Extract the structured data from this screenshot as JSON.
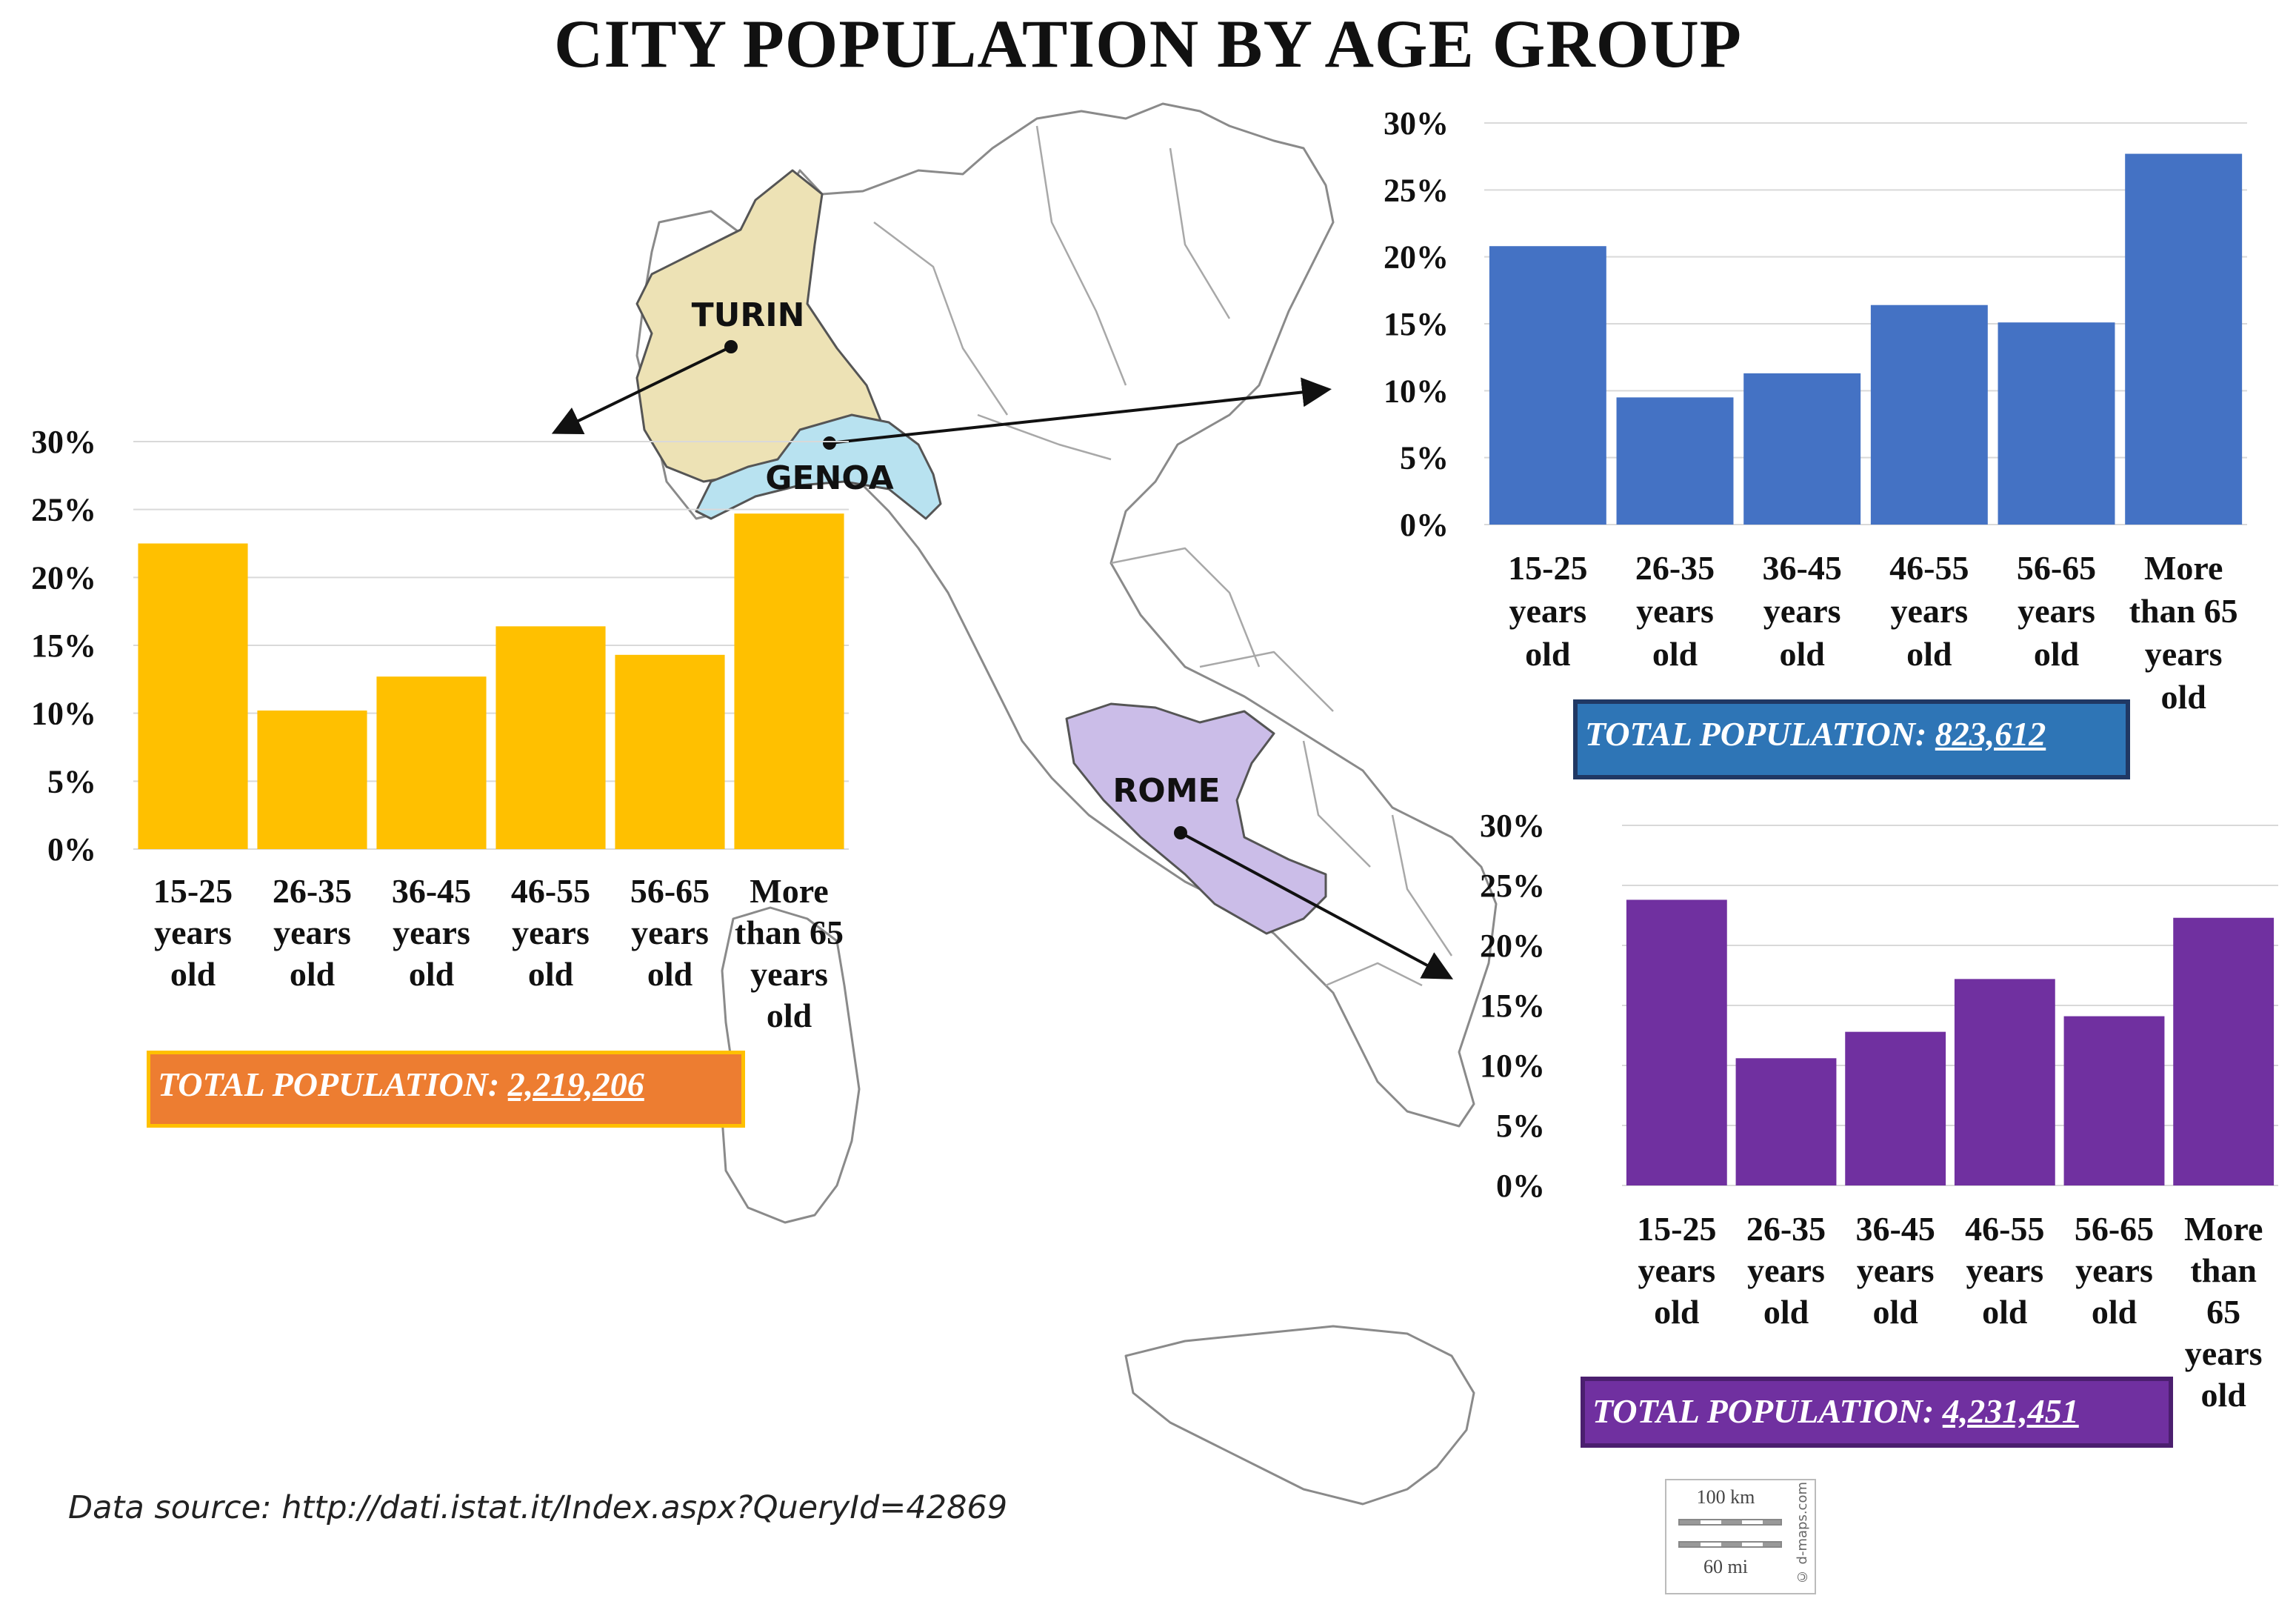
{
  "title": "CITY POPULATION BY AGE GROUP",
  "source": "Data source: http://dati.istat.it/Index.aspx?QueryId=42869",
  "scale_bar": {
    "km": "100 km",
    "mi": "60 mi",
    "credit": "© d-maps.com"
  },
  "map_labels": {
    "turin": "TURIN",
    "genoa": "GENOA",
    "rome": "ROME"
  },
  "colors": {
    "turin_bars": "#ffc000",
    "genoa_bars": "#4472c4",
    "rome_bars": "#7030a0",
    "turin_region": "#ede2b5",
    "genoa_region": "#b8e2f0",
    "rome_region": "#cbbde8"
  },
  "boxes": {
    "turin": {
      "label": "TOTAL POPULATION: ",
      "value": "2,219,206"
    },
    "genoa": {
      "label": "TOTAL POPULATION: ",
      "value": "823,612"
    },
    "rome": {
      "label": "TOTAL POPULATION: ",
      "value": "4,231,451"
    }
  },
  "chart_data": [
    {
      "type": "bar",
      "city": "Turin",
      "categories": [
        "15-25 years old",
        "26-35 years old",
        "36-45 years old",
        "46-55 years old",
        "56-65 years old",
        "More than 65 years old"
      ],
      "category_lines": [
        [
          "15-25",
          "years",
          "old"
        ],
        [
          "26-35",
          "years",
          "old"
        ],
        [
          "36-45",
          "years",
          "old"
        ],
        [
          "46-55",
          "years",
          "old"
        ],
        [
          "56-65",
          "years",
          "old"
        ],
        [
          "More",
          "than 65",
          "years",
          "old"
        ]
      ],
      "values": [
        22.5,
        10.2,
        12.7,
        16.4,
        14.3,
        24.7
      ],
      "ylim": [
        0,
        30
      ],
      "yticks": [
        "0%",
        "5%",
        "10%",
        "15%",
        "20%",
        "25%",
        "30%"
      ],
      "grid": true
    },
    {
      "type": "bar",
      "city": "Genoa",
      "categories": [
        "15-25 years old",
        "26-35 years old",
        "36-45 years old",
        "46-55 years old",
        "56-65 years old",
        "More than 65 years old"
      ],
      "category_lines": [
        [
          "15-25",
          "years",
          "old"
        ],
        [
          "26-35",
          "years",
          "old"
        ],
        [
          "36-45",
          "years",
          "old"
        ],
        [
          "46-55",
          "years",
          "old"
        ],
        [
          "56-65",
          "years",
          "old"
        ],
        [
          "More",
          "than 65",
          "years",
          "old"
        ]
      ],
      "values": [
        20.8,
        9.5,
        11.3,
        16.4,
        15.1,
        27.7
      ],
      "ylim": [
        0,
        30
      ],
      "yticks": [
        "0%",
        "5%",
        "10%",
        "15%",
        "20%",
        "25%",
        "30%"
      ],
      "grid": true
    },
    {
      "type": "bar",
      "city": "Rome",
      "categories": [
        "15-25 years old",
        "26-35 years old",
        "36-45 years old",
        "46-55 years old",
        "56-65 years old",
        "More than 65 years old"
      ],
      "category_lines": [
        [
          "15-25",
          "years",
          "old"
        ],
        [
          "26-35",
          "years",
          "old"
        ],
        [
          "36-45",
          "years",
          "old"
        ],
        [
          "46-55",
          "years",
          "old"
        ],
        [
          "56-65",
          "years",
          "old"
        ],
        [
          "More",
          "than",
          "65",
          "years",
          "old"
        ]
      ],
      "values": [
        23.8,
        10.6,
        12.8,
        17.2,
        14.1,
        22.3
      ],
      "ylim": [
        0,
        30
      ],
      "yticks": [
        "0%",
        "5%",
        "10%",
        "15%",
        "20%",
        "25%",
        "30%"
      ],
      "grid": true
    }
  ]
}
